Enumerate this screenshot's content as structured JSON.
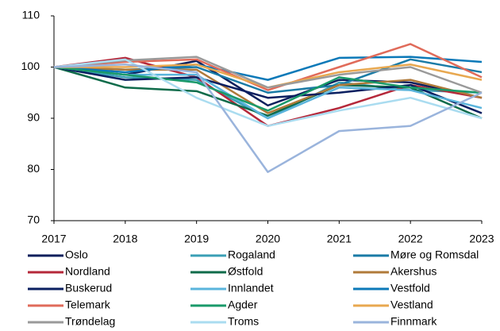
{
  "chart_data": {
    "type": "line",
    "x": [
      2017,
      2018,
      2019,
      2020,
      2021,
      2022,
      2023
    ],
    "xlim": [
      2017,
      2023
    ],
    "xticks": [
      2017,
      2018,
      2019,
      2020,
      2021,
      2022,
      2023
    ],
    "ylim": [
      70,
      110
    ],
    "yticks": [
      70,
      80,
      90,
      100,
      110
    ],
    "grid": false,
    "series": [
      {
        "name": "Oslo",
        "color": "#0b1f5c",
        "values": [
          100,
          98.5,
          101.2,
          92.5,
          97.5,
          97,
          94
        ]
      },
      {
        "name": "Rogaland",
        "color": "#3a9fb5",
        "values": [
          100,
          98,
          97.5,
          90,
          97,
          95.5,
          95
        ]
      },
      {
        "name": "Møre og Romsdal",
        "color": "#1a7ba6",
        "values": [
          100,
          99.5,
          100,
          95,
          96.5,
          101.5,
          99
        ]
      },
      {
        "name": "Nordland",
        "color": "#b5283a",
        "values": [
          100,
          101.8,
          98,
          88.5,
          92,
          96.5,
          94
        ]
      },
      {
        "name": "Østfold",
        "color": "#0f6b4a",
        "values": [
          100,
          96,
          95.3,
          90.5,
          96.5,
          96,
          90
        ]
      },
      {
        "name": "Akershus",
        "color": "#b07a3a",
        "values": [
          100,
          99.5,
          99.5,
          91,
          96.5,
          97.5,
          94
        ]
      },
      {
        "name": "Buskerud",
        "color": "#0a1f60",
        "values": [
          100,
          97.5,
          98,
          94,
          95,
          96.5,
          91
        ]
      },
      {
        "name": "Innlandet",
        "color": "#5ab4dc",
        "values": [
          100,
          98.5,
          98.5,
          90,
          96,
          95.5,
          92
        ]
      },
      {
        "name": "Vestfold",
        "color": "#0c79b8",
        "values": [
          100,
          99,
          100.5,
          97.5,
          101.8,
          102,
          101
        ]
      },
      {
        "name": "Telemark",
        "color": "#e06b5a",
        "values": [
          100,
          101,
          101.5,
          95.5,
          100,
          104.5,
          98
        ]
      },
      {
        "name": "Agder",
        "color": "#1a9a6a",
        "values": [
          100,
          98.5,
          97,
          91.5,
          98,
          96,
          95
        ]
      },
      {
        "name": "Vestland",
        "color": "#e8a850",
        "values": [
          100,
          100,
          100.5,
          96,
          99,
          100.5,
          97.5
        ]
      },
      {
        "name": "Trøndelag",
        "color": "#9a9a9a",
        "values": [
          100,
          101.3,
          102,
          96,
          98.5,
          100,
          95
        ]
      },
      {
        "name": "Troms",
        "color": "#aadcf0",
        "values": [
          100,
          101.5,
          94,
          88.5,
          91.5,
          94,
          90
        ]
      },
      {
        "name": "Finnmark",
        "color": "#9ab4dc",
        "values": [
          100,
          100.5,
          99,
          79.5,
          87.5,
          88.5,
          95
        ]
      }
    ]
  }
}
